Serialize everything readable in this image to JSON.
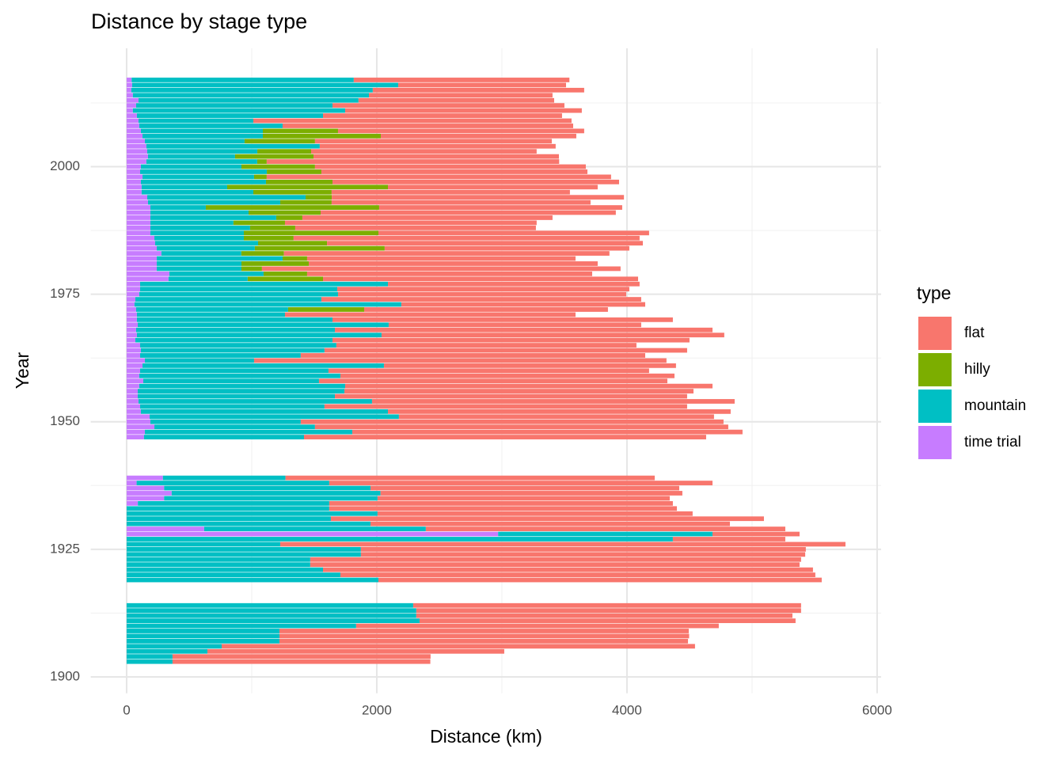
{
  "chart_data": {
    "type": "bar",
    "orientation": "horizontal",
    "stacked": true,
    "title": "Distance by stage type",
    "xlabel": "Distance (km)",
    "ylabel": "Year",
    "legend_title": "type",
    "legend": "right",
    "grid": true,
    "xlim": [
      -287,
      6032
    ],
    "xticks": [
      0,
      2000,
      4000,
      6000
    ],
    "xminor": [
      1000,
      3000,
      5000
    ],
    "ylim": [
      1896.8,
      2023.2
    ],
    "yticks": [
      1900,
      1925,
      1950,
      1975,
      2000
    ],
    "yminor": [
      1912.5,
      1937.5,
      1962.5,
      1987.5,
      2012.5
    ],
    "bar_width": 0.9,
    "y": [
      1903,
      1904,
      1905,
      1906,
      1907,
      1908,
      1909,
      1910,
      1911,
      1912,
      1913,
      1914,
      1919,
      1920,
      1921,
      1922,
      1923,
      1924,
      1925,
      1926,
      1927,
      1928,
      1929,
      1930,
      1931,
      1932,
      1933,
      1934,
      1935,
      1936,
      1937,
      1938,
      1939,
      1947,
      1948,
      1949,
      1950,
      1951,
      1952,
      1953,
      1954,
      1955,
      1956,
      1957,
      1958,
      1959,
      1960,
      1961,
      1962,
      1963,
      1964,
      1965,
      1966,
      1967,
      1968,
      1969,
      1970,
      1971,
      1972,
      1973,
      1974,
      1975,
      1976,
      1977,
      1978,
      1979,
      1980,
      1981,
      1982,
      1983,
      1984,
      1985,
      1986,
      1987,
      1988,
      1989,
      1990,
      1991,
      1992,
      1993,
      1994,
      1995,
      1996,
      1997,
      1998,
      1999,
      2000,
      2001,
      2002,
      2003,
      2004,
      2005,
      2006,
      2007,
      2008,
      2009,
      2010,
      2011,
      2012,
      2013,
      2014,
      2015,
      2016,
      2017
    ],
    "series": [
      {
        "name": "flat",
        "color": "#F8766D",
        "values": [
          2061,
          2063,
          2373,
          3784,
          3266,
          3275,
          3272,
          2899,
          3006,
          3007,
          3076,
          3101,
          3544,
          3797,
          3917,
          3912,
          3924,
          3552,
          3557,
          4519,
          899,
          696,
          2874,
          2873,
          3462,
          2519,
          2779,
          2747,
          2336,
          2413,
          2468,
          3064,
          2952,
          3215,
          3120,
          3304,
          3380,
          2519,
          2740,
          2899,
          2899,
          2816,
          2791,
          2937,
          2785,
          2671,
          2563,
          2335,
          3297,
          2754,
          2899,
          2399,
          2854,
          2740,
          3019,
          2019,
          2721,
          2323,
          1949,
          1950,
          2557,
          2304,
          2335,
          2012,
          2519,
          2279,
          2867,
          2310,
          2146,
          2602,
          1956,
          2525,
          2766,
          2164,
          1924,
          2012,
          2000,
          2360,
          1943,
          2070,
          2336,
          1905,
          1677,
          2291,
          2753,
          2127,
          2165,
          2338,
          1962,
          1803,
          1886,
          1893,
          1563,
          1968,
          2323,
          2544,
          1911,
          1892,
          1854,
          1564,
          1468,
          1690,
          1342,
          1724
        ]
      },
      {
        "name": "hilly",
        "color": "#7CAE00",
        "values": [
          0,
          0,
          0,
          0,
          0,
          0,
          0,
          0,
          0,
          0,
          0,
          0,
          0,
          0,
          0,
          0,
          0,
          0,
          0,
          0,
          0,
          0,
          0,
          0,
          0,
          0,
          0,
          0,
          0,
          0,
          0,
          0,
          0,
          0,
          0,
          0,
          0,
          0,
          0,
          0,
          0,
          0,
          0,
          0,
          0,
          0,
          0,
          0,
          0,
          0,
          0,
          0,
          0,
          0,
          0,
          0,
          0,
          0,
          608,
          0,
          0,
          0,
          0,
          0,
          602,
          348,
          164,
          538,
          196,
          341,
          1038,
          551,
          398,
          1076,
          361,
          412,
          209,
          576,
          1386,
          411,
          209,
          626,
          1285,
          532,
          101,
          436,
          588,
          76,
          627,
          430,
          0,
          563,
          943,
          601,
          0,
          0,
          0,
          0,
          0,
          0,
          0,
          0,
          0,
          0
        ]
      },
      {
        "name": "mountain",
        "color": "#00BFC4",
        "values": [
          367,
          367,
          646,
          760,
          1222,
          1222,
          1222,
          1835,
          2342,
          2316,
          2316,
          2291,
          2013,
          1709,
          1570,
          1468,
          1468,
          1873,
          1873,
          1228,
          4367,
          1714,
          1772,
          1950,
          1633,
          2006,
          1620,
          1530,
          1706,
          1670,
          1650,
          1540,
          980,
          1279,
          1658,
          1284,
          1202,
          1993,
          1975,
          1474,
          1867,
          1576,
          1652,
          1646,
          1405,
          1608,
          1506,
          1930,
          873,
          1284,
          1468,
          1569,
          1576,
          1956,
          1589,
          2006,
          1564,
          1184,
          1215,
          2133,
          1487,
          1589,
          1576,
          1981,
          633,
          753,
          677,
          677,
          1006,
          639,
          784,
          823,
          715,
          747,
          797,
          664,
          1006,
          785,
          443,
          1057,
          1266,
          893,
          684,
          1000,
          892,
          1013,
          804,
          886,
          696,
          880,
          1386,
          797,
          962,
          975,
          1146,
          918,
          1488,
          1697,
          1570,
          1759,
          1887,
          1930,
          2127,
          1776
        ]
      },
      {
        "name": "time trial",
        "color": "#C77CFF",
        "values": [
          0,
          0,
          0,
          0,
          0,
          0,
          0,
          0,
          0,
          0,
          0,
          0,
          0,
          0,
          0,
          0,
          0,
          0,
          0,
          0,
          0,
          2970,
          620,
          0,
          0,
          0,
          0,
          90,
          300,
          360,
          300,
          80,
          290,
          139,
          146,
          222,
          190,
          184,
          114,
          108,
          95,
          89,
          89,
          101,
          133,
          101,
          108,
          127,
          146,
          108,
          114,
          108,
          70,
          82,
          76,
          89,
          82,
          82,
          76,
          63,
          70,
          101,
          108,
          108,
          335,
          342,
          241,
          241,
          241,
          278,
          241,
          228,
          222,
          190,
          190,
          190,
          190,
          190,
          190,
          171,
          165,
          120,
          120,
          114,
          127,
          108,
          114,
          158,
          171,
          165,
          158,
          146,
          127,
          114,
          101,
          95,
          82,
          50,
          76,
          95,
          50,
          38,
          44,
          40
        ]
      }
    ]
  }
}
